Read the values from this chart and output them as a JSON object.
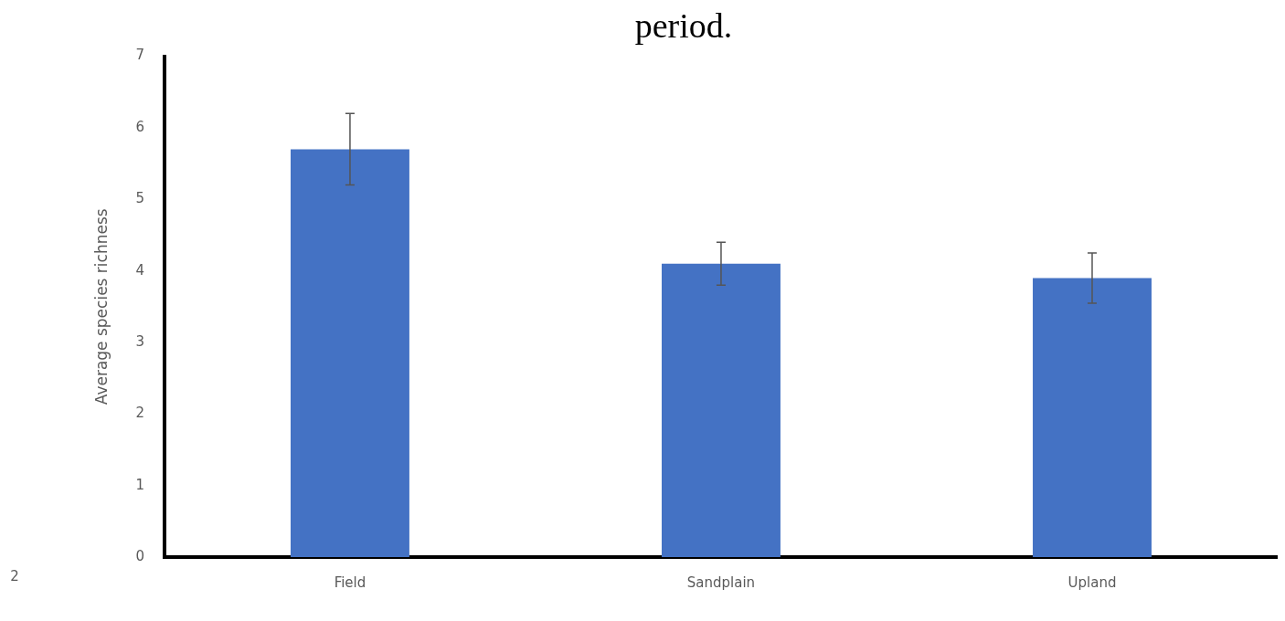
{
  "chart_data": {
    "type": "bar",
    "title": "period.",
    "ylabel": "Average species richness",
    "categories": [
      "Field",
      "Sandplain",
      "Upland"
    ],
    "values": [
      5.7,
      4.1,
      3.9
    ],
    "errors": [
      0.5,
      0.3,
      0.35
    ],
    "color": "#4472c4",
    "ylim": [
      0,
      7
    ],
    "yticks": [
      0,
      1,
      2,
      3,
      4,
      5,
      6,
      7
    ],
    "grid": false,
    "legend": false,
    "annotations": [
      "2"
    ]
  }
}
